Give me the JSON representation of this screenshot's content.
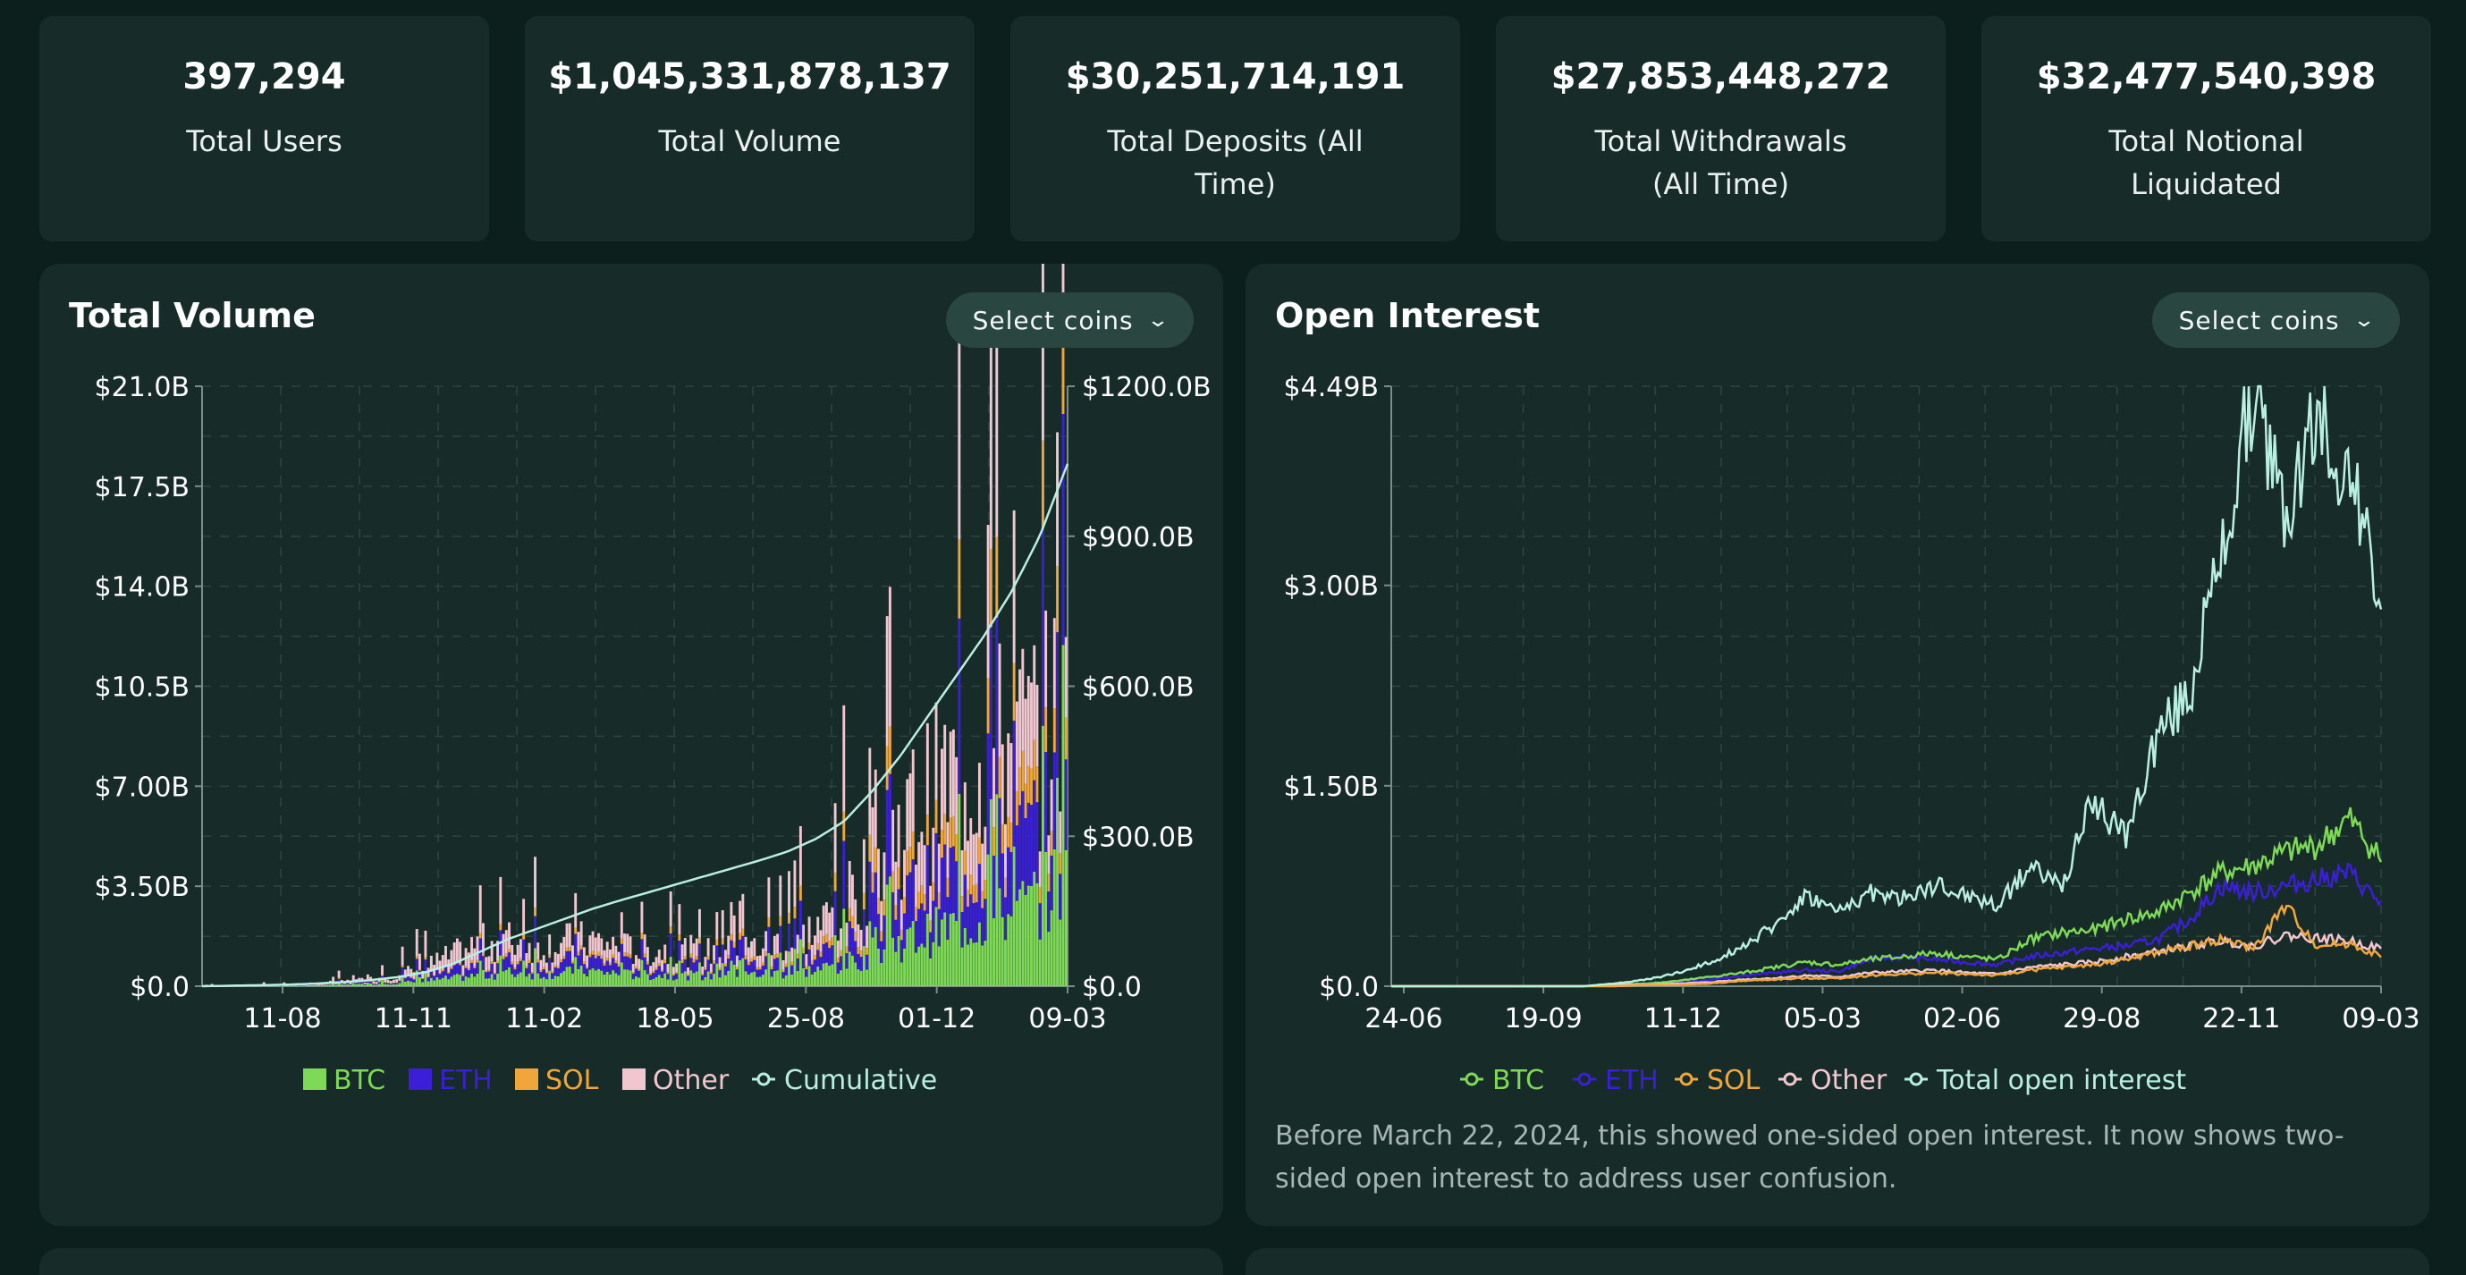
{
  "stats": [
    {
      "value": "397,294",
      "label": "Total Users"
    },
    {
      "value": "$1,045,331,878,137",
      "label": "Total Volume"
    },
    {
      "value": "$30,251,714,191",
      "label": "Total Deposits (All Time)"
    },
    {
      "value": "$27,853,448,272",
      "label": "Total Withdrawals (All Time)"
    },
    {
      "value": "$32,477,540,398",
      "label": "Total Notional Liquidated"
    }
  ],
  "volume_panel": {
    "title": "Total Volume",
    "select_label": "Select coins"
  },
  "oi_panel": {
    "title": "Open Interest",
    "select_label": "Select coins",
    "note": "Before March 22, 2024, this showed one-sided open interest. It now shows two-sided open interest to address user confusion."
  },
  "colors": {
    "btc": "#7ed957",
    "eth": "#3a1fd6",
    "sol": "#f0a63a",
    "other": "#f1c6cf",
    "cumulative": "#b9efe0"
  },
  "chart_data": [
    {
      "type": "bar",
      "title": "Total Volume",
      "stacked": true,
      "x_ticks": [
        "11-08",
        "11-11",
        "11-02",
        "18-05",
        "25-08",
        "01-12",
        "09-03"
      ],
      "y_left_ticks": [
        "$0.0",
        "$3.50B",
        "$7.00B",
        "$10.5B",
        "$14.0B",
        "$17.5B",
        "$21.0B"
      ],
      "y_left_range": [
        0,
        21
      ],
      "y_right_ticks": [
        "$0.0",
        "$300.0B",
        "$600.0B",
        "$900.0B",
        "$1200.0B"
      ],
      "y_right_range": [
        0,
        1200
      ],
      "series": [
        {
          "name": "BTC",
          "key": "btc",
          "values": [
            0.01,
            0.01,
            0.01,
            0.02,
            0.03,
            0.05,
            0.08,
            0.12,
            0.2,
            0.3,
            0.4,
            0.5,
            0.45,
            0.5,
            0.55,
            0.45,
            0.4,
            0.42,
            0.38,
            0.4,
            0.45,
            0.5,
            0.6,
            0.8,
            1.2,
            1.6,
            1.9,
            2.2,
            2.4,
            2.6,
            3.2,
            3.9
          ]
        },
        {
          "name": "ETH",
          "key": "eth",
          "values": [
            0.005,
            0.005,
            0.01,
            0.01,
            0.02,
            0.03,
            0.05,
            0.08,
            0.15,
            0.25,
            0.35,
            0.4,
            0.38,
            0.4,
            0.42,
            0.35,
            0.32,
            0.33,
            0.3,
            0.32,
            0.35,
            0.4,
            0.5,
            0.7,
            1.1,
            1.5,
            1.8,
            2.0,
            2.2,
            2.4,
            2.5,
            2.6
          ]
        },
        {
          "name": "SOL",
          "key": "sol",
          "values": [
            0.0,
            0.0,
            0.0,
            0.0,
            0.0,
            0.01,
            0.01,
            0.02,
            0.03,
            0.05,
            0.08,
            0.1,
            0.1,
            0.1,
            0.12,
            0.1,
            0.1,
            0.1,
            0.1,
            0.1,
            0.12,
            0.15,
            0.2,
            0.3,
            0.5,
            0.7,
            0.8,
            0.9,
            1.0,
            1.1,
            1.1,
            1.2
          ]
        },
        {
          "name": "Other",
          "key": "other",
          "values": [
            0.01,
            0.01,
            0.02,
            0.03,
            0.05,
            0.08,
            0.12,
            0.2,
            0.35,
            0.55,
            0.75,
            0.7,
            0.6,
            0.62,
            0.6,
            0.5,
            0.48,
            0.5,
            0.45,
            0.5,
            0.55,
            0.6,
            0.8,
            1.1,
            1.6,
            2.0,
            2.4,
            2.6,
            2.8,
            3.0,
            2.5,
            2.3
          ]
        },
        {
          "name": "Cumulative",
          "key": "cumulative",
          "axis": "right",
          "values": [
            0,
            1,
            2,
            3,
            5,
            8,
            12,
            18,
            28,
            45,
            70,
            95,
            115,
            135,
            155,
            172,
            188,
            204,
            220,
            236,
            252,
            270,
            295,
            330,
            390,
            460,
            540,
            620,
            700,
            790,
            900,
            1045
          ]
        }
      ]
    },
    {
      "type": "line",
      "title": "Open Interest",
      "x_ticks": [
        "24-06",
        "19-09",
        "11-12",
        "05-03",
        "02-06",
        "29-08",
        "22-11",
        "09-03"
      ],
      "y_ticks": [
        "$0.0",
        "$1.50B",
        "$3.00B",
        "$4.49B"
      ],
      "y_range": [
        0,
        4.49
      ],
      "series": [
        {
          "name": "BTC",
          "key": "btc",
          "values": [
            0,
            0,
            0,
            0,
            0,
            0,
            0,
            0.01,
            0.02,
            0.04,
            0.07,
            0.1,
            0.14,
            0.18,
            0.16,
            0.2,
            0.22,
            0.25,
            0.22,
            0.2,
            0.35,
            0.4,
            0.42,
            0.5,
            0.55,
            0.7,
            0.85,
            0.9,
            1.0,
            1.05,
            1.25,
            0.95
          ]
        },
        {
          "name": "ETH",
          "key": "eth",
          "values": [
            0,
            0,
            0,
            0,
            0,
            0,
            0,
            0.01,
            0.02,
            0.03,
            0.05,
            0.08,
            0.1,
            0.12,
            0.11,
            0.2,
            0.22,
            0.2,
            0.18,
            0.16,
            0.22,
            0.25,
            0.28,
            0.3,
            0.35,
            0.5,
            0.75,
            0.7,
            0.75,
            0.8,
            0.85,
            0.62
          ]
        },
        {
          "name": "SOL",
          "key": "sol",
          "values": [
            0,
            0,
            0,
            0,
            0,
            0,
            0,
            0,
            0.01,
            0.01,
            0.02,
            0.04,
            0.05,
            0.06,
            0.06,
            0.08,
            0.09,
            0.1,
            0.09,
            0.08,
            0.12,
            0.14,
            0.16,
            0.2,
            0.25,
            0.3,
            0.35,
            0.28,
            0.6,
            0.3,
            0.32,
            0.22
          ]
        },
        {
          "name": "Other",
          "key": "other",
          "values": [
            0,
            0,
            0,
            0,
            0,
            0,
            0,
            0.01,
            0.01,
            0.02,
            0.03,
            0.05,
            0.06,
            0.08,
            0.07,
            0.1,
            0.11,
            0.12,
            0.1,
            0.09,
            0.14,
            0.16,
            0.18,
            0.22,
            0.26,
            0.3,
            0.34,
            0.3,
            0.38,
            0.36,
            0.34,
            0.28
          ]
        },
        {
          "name": "Total open interest",
          "key": "cumulative",
          "values": [
            0,
            0,
            0,
            0,
            0,
            0,
            0,
            0.02,
            0.05,
            0.1,
            0.18,
            0.3,
            0.45,
            0.68,
            0.55,
            0.7,
            0.65,
            0.75,
            0.68,
            0.6,
            0.9,
            0.75,
            1.4,
            1.1,
            1.9,
            2.2,
            3.2,
            4.49,
            3.5,
            4.3,
            3.8,
            2.9
          ]
        }
      ]
    }
  ]
}
